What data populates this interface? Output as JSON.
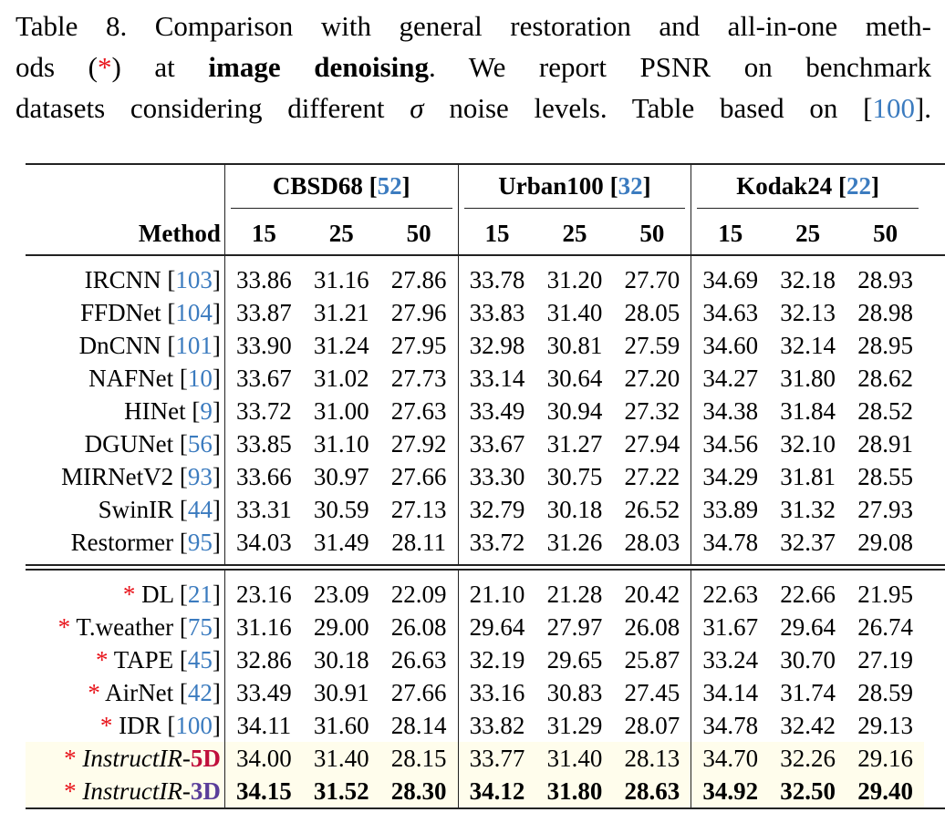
{
  "caption": {
    "line1": {
      "label": "Table 8.",
      "text": "Comparison with general restoration and all-in-one meth-"
    },
    "line2": {
      "pre": "ods (",
      "star": "*",
      "mid": ") at",
      "bold": "image denoising",
      "post": ".  We report PSNR on benchmark"
    },
    "line3": {
      "pre": "datasets considering different",
      "sigma": "σ",
      "mid": "noise levels. Table based on [",
      "cite": "100",
      "post": "]."
    }
  },
  "table": {
    "groups": [
      {
        "name": "CBSD68",
        "cite": "52"
      },
      {
        "name": "Urban100",
        "cite": "32"
      },
      {
        "name": "Kodak24",
        "cite": "22"
      }
    ],
    "method_header": "Method",
    "sigmas": [
      "15",
      "25",
      "50"
    ],
    "general_methods": [
      {
        "name": "IRCNN",
        "cite": "103",
        "values": [
          "33.86",
          "31.16",
          "27.86",
          "33.78",
          "31.20",
          "27.70",
          "34.69",
          "32.18",
          "28.93"
        ]
      },
      {
        "name": "FFDNet",
        "cite": "104",
        "values": [
          "33.87",
          "31.21",
          "27.96",
          "33.83",
          "31.40",
          "28.05",
          "34.63",
          "32.13",
          "28.98"
        ]
      },
      {
        "name": "DnCNN",
        "cite": "101",
        "values": [
          "33.90",
          "31.24",
          "27.95",
          "32.98",
          "30.81",
          "27.59",
          "34.60",
          "32.14",
          "28.95"
        ]
      },
      {
        "name": "NAFNet",
        "cite": "10",
        "values": [
          "33.67",
          "31.02",
          "27.73",
          "33.14",
          "30.64",
          "27.20",
          "34.27",
          "31.80",
          "28.62"
        ]
      },
      {
        "name": "HINet",
        "cite": "9",
        "values": [
          "33.72",
          "31.00",
          "27.63",
          "33.49",
          "30.94",
          "27.32",
          "34.38",
          "31.84",
          "28.52"
        ]
      },
      {
        "name": "DGUNet",
        "cite": "56",
        "values": [
          "33.85",
          "31.10",
          "27.92",
          "33.67",
          "31.27",
          "27.94",
          "34.56",
          "32.10",
          "28.91"
        ]
      },
      {
        "name": "MIRNetV2",
        "cite": "93",
        "values": [
          "33.66",
          "30.97",
          "27.66",
          "33.30",
          "30.75",
          "27.22",
          "34.29",
          "31.81",
          "28.55"
        ]
      },
      {
        "name": "SwinIR",
        "cite": "44",
        "values": [
          "33.31",
          "30.59",
          "27.13",
          "32.79",
          "30.18",
          "26.52",
          "33.89",
          "31.32",
          "27.93"
        ]
      },
      {
        "name": "Restormer",
        "cite": "95",
        "values": [
          "34.03",
          "31.49",
          "28.11",
          "33.72",
          "31.26",
          "28.03",
          "34.78",
          "32.37",
          "29.08"
        ]
      }
    ],
    "allinone_methods": [
      {
        "star": "*",
        "name": "DL",
        "cite": "21",
        "values": [
          "23.16",
          "23.09",
          "22.09",
          "21.10",
          "21.28",
          "20.42",
          "22.63",
          "22.66",
          "21.95"
        ]
      },
      {
        "star": "*",
        "name": "T.weather",
        "cite": "75",
        "values": [
          "31.16",
          "29.00",
          "26.08",
          "29.64",
          "27.97",
          "26.08",
          "31.67",
          "29.64",
          "26.74"
        ]
      },
      {
        "star": "*",
        "name": "TAPE",
        "cite": "45",
        "values": [
          "32.86",
          "30.18",
          "26.63",
          "32.19",
          "29.65",
          "25.87",
          "33.24",
          "30.70",
          "27.19"
        ]
      },
      {
        "star": "*",
        "name": "AirNet",
        "cite": "42",
        "values": [
          "33.49",
          "30.91",
          "27.66",
          "33.16",
          "30.83",
          "27.45",
          "34.14",
          "31.74",
          "28.59"
        ]
      },
      {
        "star": "*",
        "name": "IDR",
        "cite": "100",
        "values": [
          "34.11",
          "31.60",
          "28.14",
          "33.82",
          "31.29",
          "28.07",
          "34.78",
          "32.42",
          "29.13"
        ]
      }
    ],
    "ours": [
      {
        "star": "*",
        "name": "InstructIR-",
        "suffix": "5D",
        "values": [
          "34.00",
          "31.40",
          "28.15",
          "33.77",
          "31.40",
          "28.13",
          "34.70",
          "32.26",
          "29.16"
        ]
      },
      {
        "star": "*",
        "name": "InstructIR-",
        "suffix": "3D",
        "values": [
          "34.15",
          "31.52",
          "28.30",
          "34.12",
          "31.80",
          "28.63",
          "34.92",
          "32.50",
          "29.40"
        ]
      }
    ],
    "colors": {
      "citation": "#3b7bbf",
      "star": "#e8141b",
      "5D": "#c0103c",
      "3D": "#5a3e9a",
      "highlight": "#fffdec"
    }
  }
}
